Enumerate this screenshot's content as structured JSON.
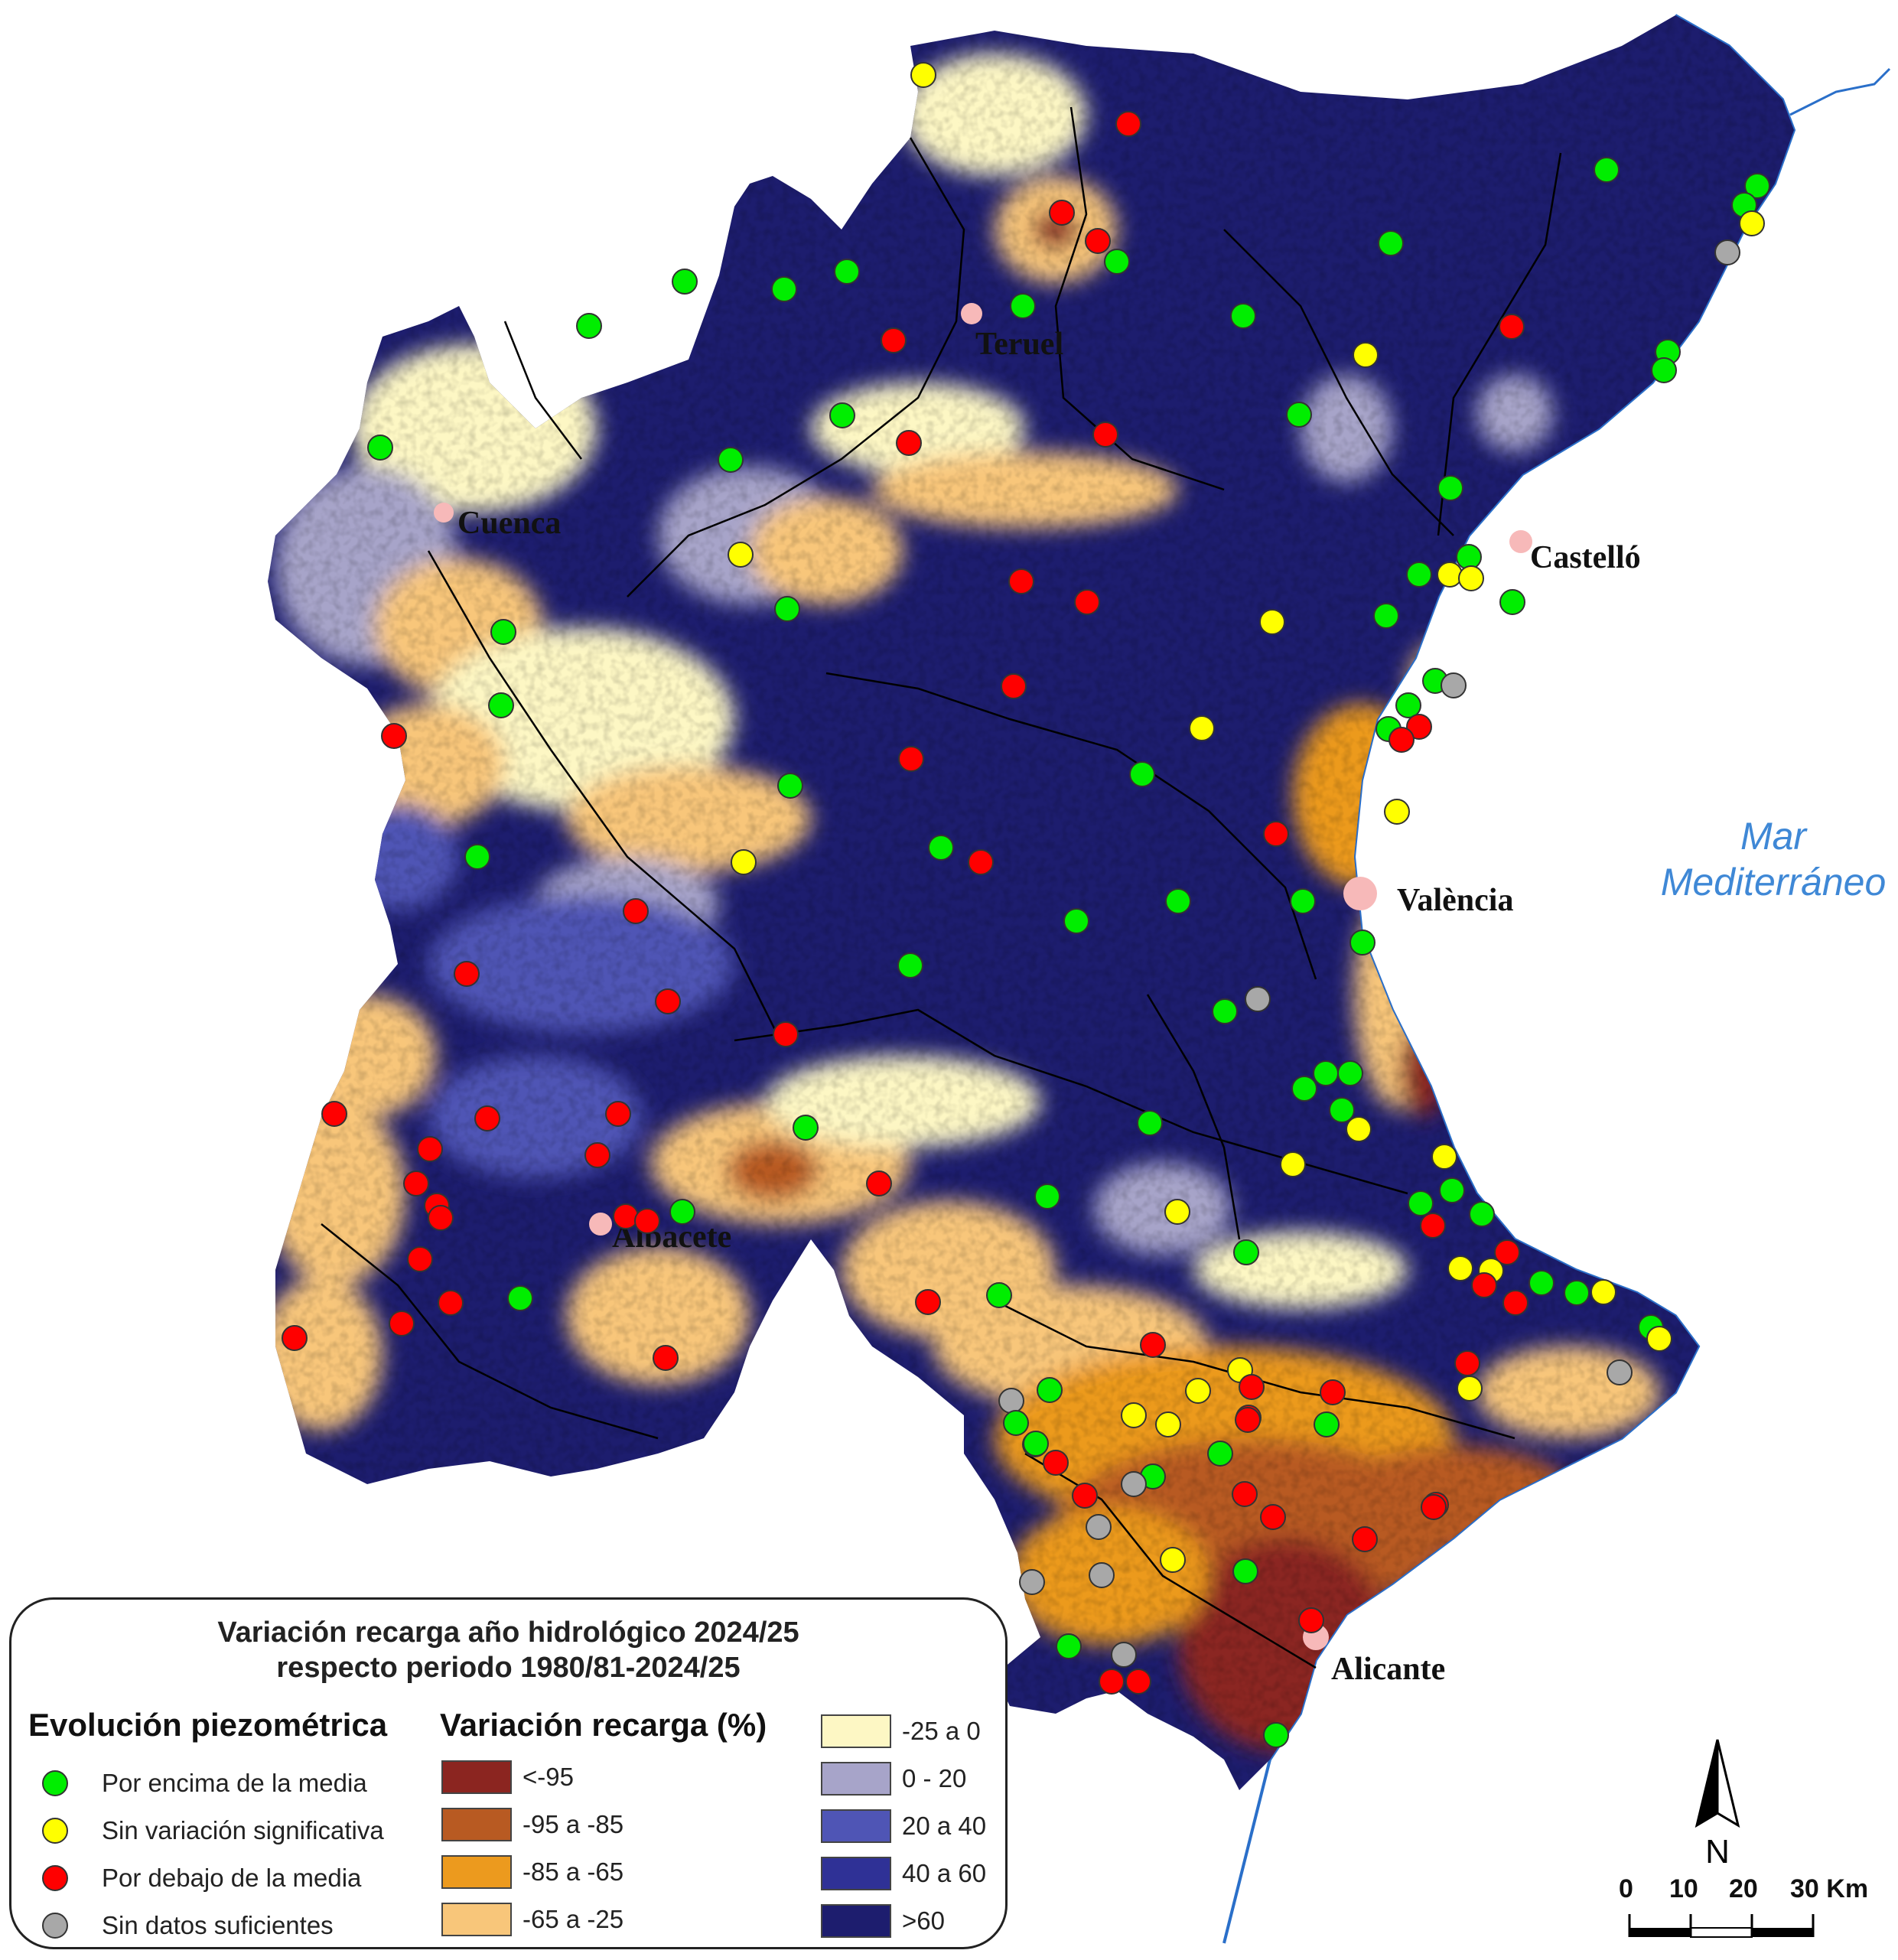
{
  "legend": {
    "title_line1": "Variación recarga año hidrológico 2024/25",
    "title_line2": "respecto periodo 1980/81-2024/25",
    "piezo_heading": "Evolución piezométrica",
    "piezo_items": [
      {
        "label": "Por encima de la media",
        "color": "#00ee00"
      },
      {
        "label": "Sin variación significativa",
        "color": "#ffff00"
      },
      {
        "label": "Por debajo de la media",
        "color": "#ff0000"
      },
      {
        "label": "Sin datos suficientes",
        "color": "#a8a8a8"
      }
    ],
    "recharge_heading": "Variación recarga (%)",
    "recharge_items": [
      {
        "label": "<-95",
        "color": "#8b2520"
      },
      {
        "label": "-95 a -85",
        "color": "#b85a22"
      },
      {
        "label": "-85 a -65",
        "color": "#ec9a1e"
      },
      {
        "label": "-65 a -25",
        "color": "#f8c67a"
      },
      {
        "label": "-25 a 0",
        "color": "#fdf7c4"
      },
      {
        "label": "0 - 20",
        "color": "#a7a4c9"
      },
      {
        "label": "20 a 40",
        "color": "#4f55b5"
      },
      {
        "label": "40 a 60",
        "color": "#2f3196"
      },
      {
        "label": ">60",
        "color": "#1d1d6e"
      }
    ]
  },
  "cities": [
    "Teruel",
    "Cuenca",
    "Castelló",
    "València",
    "Albacete",
    "Alicante"
  ],
  "sea_label_line1": "Mar",
  "sea_label_line2": "Mediterráneo",
  "north_label": "N",
  "scale": {
    "ticks": [
      "0",
      "10",
      "20",
      "30 Km"
    ]
  },
  "colors": {
    "sea_text": "#3f88d6",
    "coast": "#2a6fc9"
  }
}
